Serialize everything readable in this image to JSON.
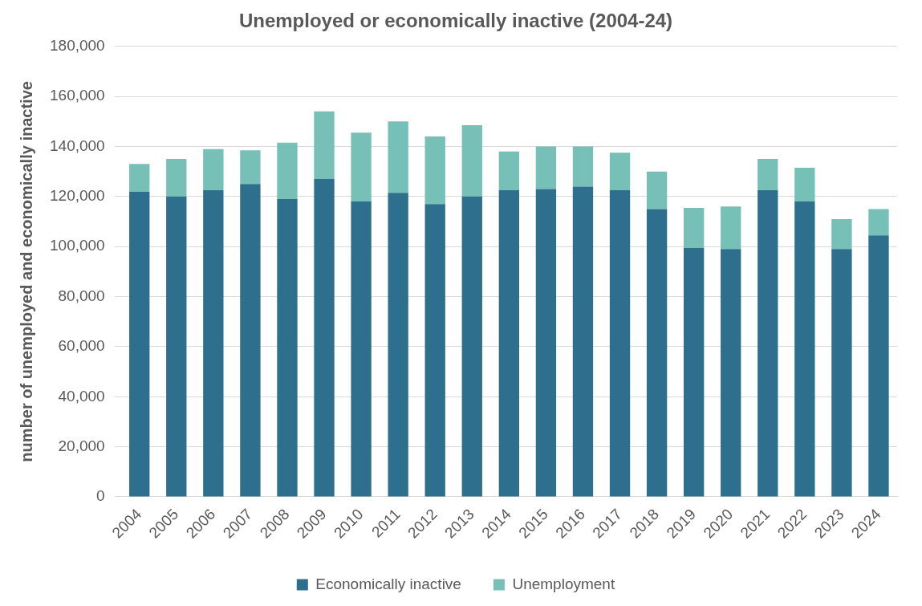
{
  "chart_data": {
    "type": "bar",
    "title": "Unemployed or economically inactive (2004-24)",
    "ylabel": "number of unemployed and economically inactive",
    "categories": [
      "2004",
      "2005",
      "2006",
      "2007",
      "2008",
      "2009",
      "2010",
      "2011",
      "2012",
      "2013",
      "2014",
      "2015",
      "2016",
      "2017",
      "2018",
      "2019",
      "2020",
      "2021",
      "2022",
      "2023",
      "2024"
    ],
    "series": [
      {
        "name": "Economically inactive",
        "color": "#2e6f8e",
        "values": [
          122000,
          120000,
          122500,
          125000,
          119000,
          127000,
          118000,
          121500,
          117000,
          120000,
          122500,
          123000,
          124000,
          122500,
          115000,
          99500,
          99000,
          122500,
          118000,
          99000,
          104500
        ]
      },
      {
        "name": "Unemployment",
        "color": "#76c0b8",
        "values": [
          11000,
          15000,
          16500,
          13500,
          22500,
          27000,
          27500,
          28500,
          27000,
          28500,
          15500,
          17000,
          16000,
          15000,
          15000,
          16000,
          17000,
          12500,
          13500,
          12000,
          10500
        ]
      }
    ],
    "stacked": true,
    "ylim": [
      0,
      180000
    ],
    "yticks": [
      0,
      {
        "value": 20000,
        "label": "20,000"
      },
      {
        "value": 40000,
        "label": "40,000"
      },
      {
        "value": 60000,
        "label": "60,000"
      },
      {
        "value": 80000,
        "label": "80,000"
      },
      {
        "value": 100000,
        "label": "100,000"
      },
      {
        "value": 120000,
        "label": "120,000"
      },
      {
        "value": 140000,
        "label": "140,000"
      },
      {
        "value": 160000,
        "label": "160,000"
      },
      {
        "value": 180000,
        "label": "180,000"
      }
    ],
    "grid": "y",
    "legend": "bottom"
  }
}
